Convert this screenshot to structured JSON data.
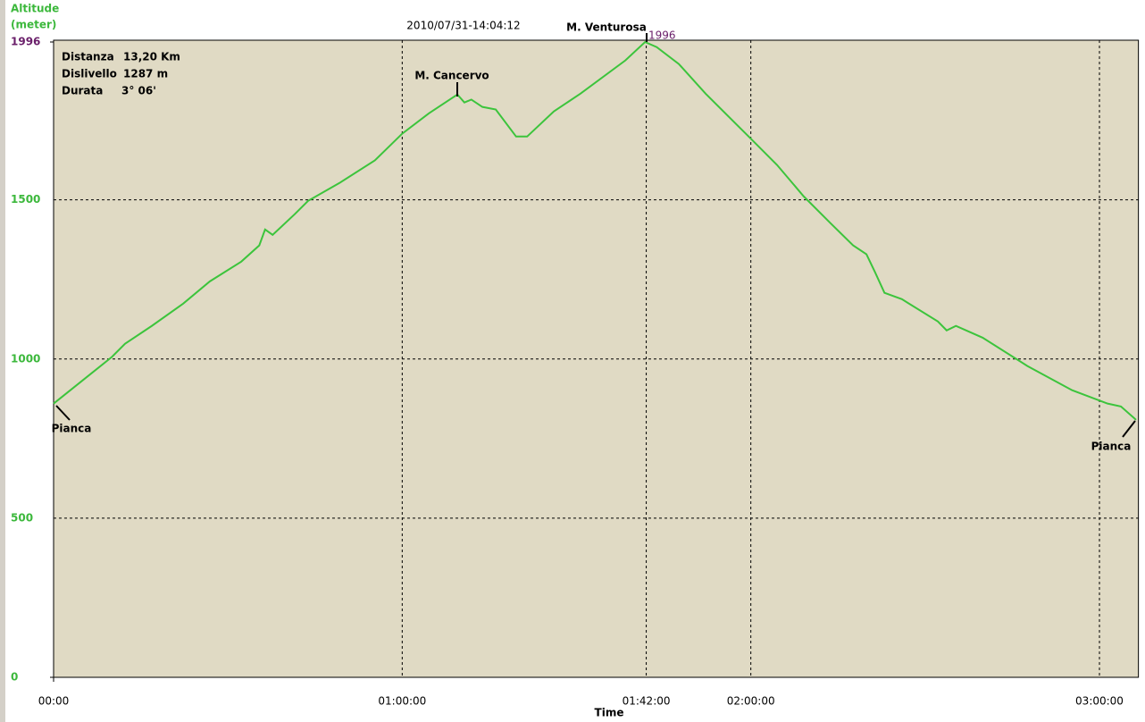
{
  "chart_data": {
    "type": "line",
    "timestamp": "2010/07/31-14:04:12",
    "ylabel": [
      "Altitude",
      "(meter)"
    ],
    "xlabel": "Time",
    "info": [
      {
        "label": "Distanza",
        "value": "13,20 Km"
      },
      {
        "label": "Dislivello",
        "value": "1287 m"
      },
      {
        "label": "Durata",
        "value": "3° 06'"
      }
    ],
    "annotations": [
      "M. Cancervo",
      "M. Venturosa",
      "Pianca",
      "Pianca"
    ],
    "max_altitude": 1996,
    "x": [
      0,
      6.1,
      10,
      12.3,
      16.9,
      22.3,
      26.9,
      32.3,
      35.4,
      36.4,
      37.7,
      41.5,
      43.8,
      49.2,
      55.3,
      60,
      64.6,
      69.5,
      70.7,
      71.9,
      73.8,
      76.1,
      79.6,
      81.5,
      86.1,
      90.7,
      98.4,
      101.8,
      103.8,
      107.6,
      112.2,
      119.9,
      124.5,
      129.1,
      133.7,
      137.6,
      139.9,
      141.4,
      143,
      146,
      152.2,
      153.7,
      155.3,
      159.9,
      167.6,
      175.3,
      181.4,
      183.7,
      186.3
    ],
    "series": [
      {
        "color": "#3cc43c",
        "values": [
          860,
          949,
          1006,
          1048,
          1104,
          1174,
          1244,
          1306,
          1357,
          1407,
          1390,
          1455,
          1497,
          1553,
          1624,
          1708,
          1772,
          1831,
          1806,
          1815,
          1792,
          1784,
          1699,
          1699,
          1778,
          1834,
          1938,
          1996,
          1980,
          1927,
          1834,
          1694,
          1610,
          1511,
          1427,
          1357,
          1329,
          1272,
          1208,
          1188,
          1118,
          1090,
          1104,
          1067,
          978,
          902,
          860,
          851,
          809
        ]
      }
    ],
    "xlim": [
      0,
      186.4
    ],
    "xticks": [
      {
        "value": 0,
        "label": "00:00"
      },
      {
        "value": 60,
        "label": "01:00:00"
      },
      {
        "value": 102,
        "label": "01:42:00"
      },
      {
        "value": 120,
        "label": "02:00:00"
      },
      {
        "value": 180,
        "label": "03:00:00"
      }
    ],
    "ylim": [
      0,
      1996
    ],
    "yticks": [
      0,
      500,
      1000,
      1500,
      1996
    ],
    "grid": true,
    "background": "#e0dac4"
  }
}
